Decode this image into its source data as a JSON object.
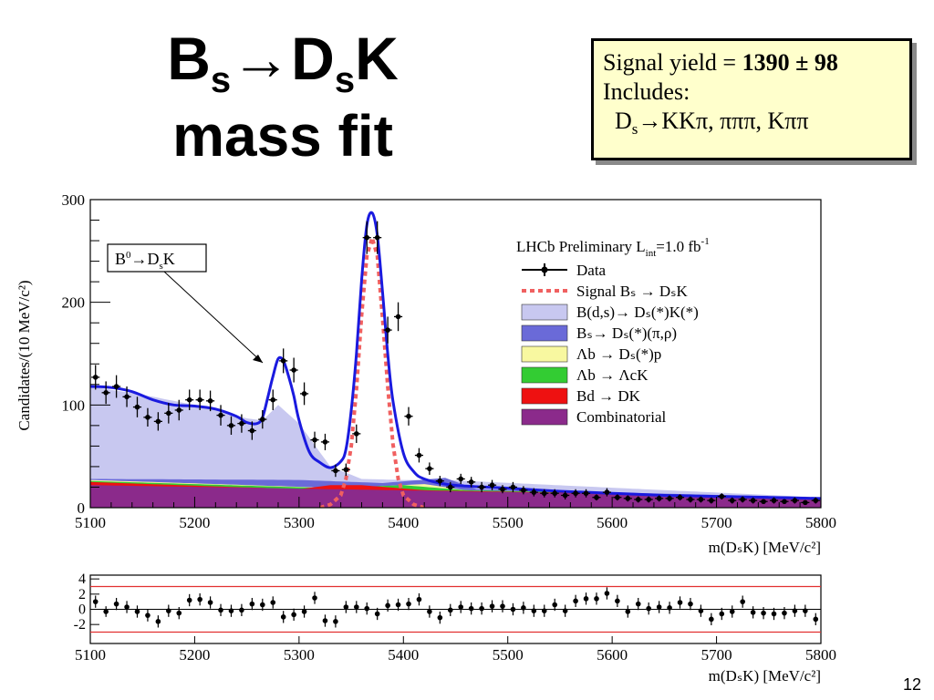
{
  "slide": {
    "title_b": "B",
    "title_sub_s1": "s",
    "title_arrow": "→",
    "title_d": "D",
    "title_sub_s2": "s",
    "title_k": "K",
    "title_line2": "mass fit",
    "page_number": "12"
  },
  "info_box": {
    "line1_prefix": "Signal yield = ",
    "line1_value": "1390 ± 98",
    "line2": "Includes:",
    "line3_d": "D",
    "line3_sub": "s",
    "line3_rest": "→KKπ, πππ, Kππ"
  },
  "annotation": {
    "label_b0": "B",
    "label_sup": "0",
    "label_arrow": "→",
    "label_d": "D",
    "label_sub": "s",
    "label_k": "K"
  },
  "legend": {
    "header": "LHCb Preliminary L",
    "header_sub": "int",
    "header_rest": "=1.0 fb",
    "header_sup": "-1",
    "entries": [
      {
        "text": "Data",
        "style": "data",
        "color": "#000000"
      },
      {
        "text": "Signal Bₛ → DₛK",
        "style": "dashed",
        "color": "#f06060"
      },
      {
        "text": "B(d,s)→ Dₛ(*)K(*)",
        "style": "fill",
        "color": "#c8c8f0"
      },
      {
        "text": "Bₛ→ Dₛ(*)(π,ρ)",
        "style": "fill",
        "color": "#6a6ad8"
      },
      {
        "text": "Λb → Dₛ(*)p",
        "style": "fill",
        "color": "#f8f8a0"
      },
      {
        "text": "Λb → ΛcK",
        "style": "fill",
        "color": "#33cc33"
      },
      {
        "text": "Bd → DK",
        "style": "fill",
        "color": "#ee1111"
      },
      {
        "text": "Combinatorial",
        "style": "fill",
        "color": "#8b2a8b"
      }
    ]
  },
  "chart_data": [
    {
      "type": "line",
      "xlabel": "m(DₛK) [MeV/c²]",
      "ylabel": "Candidates/(10 MeV/c²)",
      "xlim": [
        5100,
        5800
      ],
      "ylim": [
        0,
        300
      ],
      "x_ticks": [
        5100,
        5200,
        5300,
        5400,
        5500,
        5600,
        5700,
        5800
      ],
      "y_ticks": [
        0,
        100,
        200,
        300
      ],
      "data": {
        "x": [
          5105,
          5115,
          5125,
          5135,
          5145,
          5155,
          5165,
          5175,
          5185,
          5195,
          5205,
          5215,
          5225,
          5235,
          5245,
          5255,
          5265,
          5275,
          5285,
          5295,
          5305,
          5315,
          5325,
          5335,
          5345,
          5355,
          5365,
          5375,
          5385,
          5395,
          5405,
          5415,
          5425,
          5435,
          5445,
          5455,
          5465,
          5475,
          5485,
          5495,
          5505,
          5515,
          5525,
          5535,
          5545,
          5555,
          5565,
          5575,
          5585,
          5595,
          5605,
          5615,
          5625,
          5635,
          5645,
          5655,
          5665,
          5675,
          5685,
          5695,
          5705,
          5715,
          5725,
          5735,
          5745,
          5755,
          5765,
          5775,
          5785,
          5795
        ],
        "y": [
          127,
          112,
          118,
          108,
          98,
          88,
          84,
          92,
          95,
          105,
          105,
          104,
          90,
          80,
          82,
          75,
          86,
          105,
          143,
          134,
          111,
          66,
          64,
          36,
          37,
          72,
          263,
          263,
          173,
          186,
          89,
          51,
          38,
          26,
          20,
          28,
          25,
          20,
          22,
          18,
          20,
          17,
          15,
          14,
          14,
          12,
          14,
          14,
          10,
          15,
          10,
          9,
          8,
          8,
          9,
          9,
          10,
          8,
          8,
          7,
          11,
          7,
          8,
          7,
          6,
          7,
          6,
          7,
          5,
          7
        ],
        "yerr": [
          12,
          11,
          11,
          10,
          10,
          9,
          9,
          10,
          10,
          10,
          10,
          10,
          10,
          9,
          9,
          9,
          9,
          10,
          12,
          12,
          11,
          8,
          8,
          6,
          6,
          9,
          16,
          16,
          13,
          14,
          9,
          7,
          6,
          5,
          5,
          5,
          5,
          5,
          5,
          4,
          5,
          4,
          4,
          4,
          4,
          4,
          4,
          4,
          3,
          4,
          3,
          3,
          3,
          3,
          3,
          3,
          3,
          3,
          3,
          3,
          3,
          3,
          3,
          3,
          2,
          3,
          2,
          3,
          2,
          3
        ]
      },
      "total_fit": {
        "x": [
          5100,
          5120,
          5140,
          5160,
          5180,
          5200,
          5220,
          5240,
          5250,
          5260,
          5265,
          5270,
          5275,
          5280,
          5285,
          5290,
          5295,
          5300,
          5310,
          5320,
          5330,
          5340,
          5345,
          5350,
          5355,
          5360,
          5365,
          5370,
          5375,
          5380,
          5385,
          5390,
          5400,
          5410,
          5420,
          5440,
          5460,
          5500,
          5550,
          5600,
          5650,
          5700,
          5750,
          5800
        ],
        "y": [
          118,
          117,
          113,
          105,
          100,
          99,
          96,
          89,
          83,
          82,
          88,
          107,
          128,
          145,
          143,
          128,
          109,
          85,
          54,
          44,
          39,
          45,
          57,
          95,
          150,
          222,
          275,
          287,
          265,
          210,
          150,
          104,
          53,
          35,
          28,
          23,
          21,
          19,
          16,
          14,
          12,
          11,
          10,
          9
        ]
      },
      "signal": {
        "x": [
          5320,
          5330,
          5340,
          5345,
          5350,
          5355,
          5360,
          5365,
          5370,
          5375,
          5380,
          5385,
          5390,
          5395,
          5400,
          5410,
          5420
        ],
        "y": [
          0,
          3,
          12,
          28,
          60,
          115,
          188,
          245,
          263,
          245,
          185,
          118,
          62,
          28,
          12,
          3,
          0
        ]
      },
      "components": [
        {
          "name": "Combinatorial",
          "x": [
            5100,
            5800
          ],
          "y": [
            22,
            10
          ]
        },
        {
          "name": "Bd → DK",
          "x": [
            5100,
            5300,
            5330,
            5360,
            5420,
            5800
          ],
          "y": [
            25,
            18,
            22,
            22,
            17,
            10
          ]
        },
        {
          "name": "Λb → ΛcK",
          "x": [
            5100,
            5330,
            5400,
            5460,
            5800
          ],
          "y": [
            26,
            19,
            22,
            17,
            10
          ]
        },
        {
          "name": "Λb → Dₛ(*)p",
          "x": [
            5100,
            5340,
            5420,
            5460,
            5800
          ],
          "y": [
            27,
            19,
            23,
            17,
            10
          ]
        },
        {
          "name": "Bₛ→ Dₛ(*)(π,ρ)",
          "x": [
            5100,
            5300,
            5380,
            5440,
            5470,
            5800
          ],
          "y": [
            28,
            27,
            24,
            29,
            18,
            10
          ]
        },
        {
          "name": "B(d,s)→ Dₛ(*)K(*)",
          "x": [
            5100,
            5150,
            5200,
            5250,
            5265,
            5280,
            5300,
            5330,
            5360,
            5400,
            5440,
            5800
          ],
          "y": [
            118,
            110,
            100,
            87,
            85,
            100,
            82,
            40,
            28,
            27,
            27,
            10
          ]
        }
      ]
    },
    {
      "type": "scatter",
      "xlabel": "m(DₛK) [MeV/c²]",
      "xlim": [
        5100,
        5800
      ],
      "ylim": [
        -4.5,
        4.5
      ],
      "x_ticks": [
        5100,
        5200,
        5300,
        5400,
        5500,
        5600,
        5700,
        5800
      ],
      "y_ticks": [
        -2,
        0,
        2,
        4
      ],
      "reference_lines": [
        3,
        -3
      ],
      "x": [
        5105,
        5115,
        5125,
        5135,
        5145,
        5155,
        5165,
        5175,
        5185,
        5195,
        5205,
        5215,
        5225,
        5235,
        5245,
        5255,
        5265,
        5275,
        5285,
        5295,
        5305,
        5315,
        5325,
        5335,
        5345,
        5355,
        5365,
        5375,
        5385,
        5395,
        5405,
        5415,
        5425,
        5435,
        5445,
        5455,
        5465,
        5475,
        5485,
        5495,
        5505,
        5515,
        5525,
        5535,
        5545,
        5555,
        5565,
        5575,
        5585,
        5595,
        5605,
        5615,
        5625,
        5635,
        5645,
        5655,
        5665,
        5675,
        5685,
        5695,
        5705,
        5715,
        5725,
        5735,
        5745,
        5755,
        5765,
        5775,
        5785,
        5795
      ],
      "y": [
        1.0,
        -0.3,
        0.7,
        0.3,
        -0.3,
        -0.8,
        -1.6,
        -0.2,
        -0.5,
        1.2,
        1.3,
        0.9,
        -0.1,
        -0.2,
        -0.1,
        0.7,
        0.6,
        0.9,
        -1.0,
        -0.7,
        -0.3,
        1.5,
        -1.5,
        -1.6,
        0.3,
        0.3,
        0.1,
        -0.6,
        0.5,
        0.6,
        0.7,
        1.3,
        -0.3,
        -1.1,
        -0.1,
        0.3,
        0.1,
        0.1,
        0.4,
        0.4,
        0.0,
        0.2,
        -0.2,
        -0.2,
        0.6,
        -0.2,
        1.1,
        1.4,
        1.4,
        2.1,
        1.1,
        -0.3,
        0.7,
        0.1,
        0.3,
        0.2,
        0.9,
        0.7,
        -0.2,
        -1.3,
        -0.6,
        -0.3,
        1.0,
        -0.4,
        -0.5,
        -0.6,
        -0.5,
        -0.2,
        -0.2,
        -1.3
      ],
      "yerr": [
        0.8,
        0.7,
        0.8,
        0.8,
        0.8,
        0.8,
        0.8,
        0.8,
        0.8,
        0.8,
        0.8,
        0.8,
        0.8,
        0.8,
        0.8,
        0.8,
        0.8,
        0.8,
        0.8,
        0.8,
        0.8,
        0.8,
        0.8,
        0.8,
        0.8,
        0.8,
        0.8,
        0.8,
        0.8,
        0.8,
        0.8,
        0.8,
        0.8,
        0.8,
        0.8,
        0.8,
        0.8,
        0.8,
        0.8,
        0.8,
        0.8,
        0.8,
        0.8,
        0.8,
        0.8,
        0.8,
        0.8,
        0.8,
        0.8,
        0.8,
        0.8,
        0.8,
        0.8,
        0.8,
        0.8,
        0.8,
        0.8,
        0.8,
        0.8,
        0.8,
        0.8,
        0.8,
        0.8,
        0.8,
        0.8,
        0.8,
        0.8,
        0.8,
        0.8,
        0.8
      ]
    }
  ]
}
